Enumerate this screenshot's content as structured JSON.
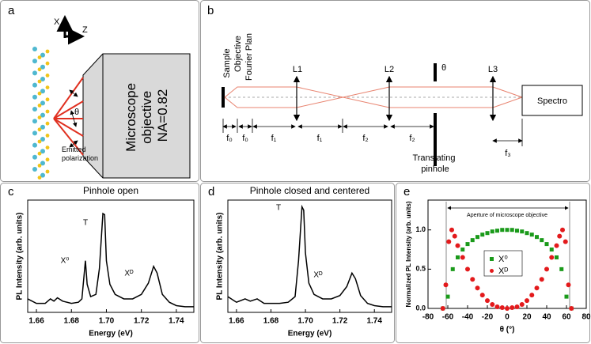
{
  "panels": {
    "a": {
      "panel": "a",
      "axis_x": "X",
      "axis_z": "Z",
      "angle": "θ",
      "objective_lines": [
        "Microscope",
        "objective",
        "NA=0.82"
      ],
      "polarization_lines": [
        "Emitted",
        "polarization"
      ]
    },
    "b": {
      "panel": "b",
      "sample": "Sample",
      "objective": "Objective",
      "fourier": "Fourier Plan",
      "lenses": [
        "L1",
        "L2",
        "L3"
      ],
      "angle": "θ",
      "spectro": "Spectro",
      "focal": [
        "f₀",
        "f₀",
        "f₁",
        "f₁",
        "f₂",
        "f₂",
        "f₃"
      ],
      "pinhole_lines": [
        "Translating",
        "pinhole"
      ]
    }
  },
  "chart_data": [
    {
      "type": "line",
      "panel": "c",
      "title": "Pinhole open",
      "xlabel": "Energy (eV)",
      "ylabel": "PL Intensity (arb. units)",
      "x": [
        1.655,
        1.66,
        1.665,
        1.668,
        1.67,
        1.672,
        1.675,
        1.68,
        1.684,
        1.686,
        1.688,
        1.689,
        1.691,
        1.694,
        1.696,
        1.698,
        1.699,
        1.7,
        1.702,
        1.705,
        1.71,
        1.715,
        1.72,
        1.724,
        1.727,
        1.729,
        1.732,
        1.736,
        1.74,
        1.745,
        1.75
      ],
      "values": [
        0.12,
        0.08,
        0.08,
        0.12,
        0.1,
        0.13,
        0.1,
        0.08,
        0.09,
        0.12,
        0.46,
        0.25,
        0.14,
        0.16,
        0.39,
        0.88,
        0.87,
        0.46,
        0.25,
        0.16,
        0.12,
        0.12,
        0.16,
        0.26,
        0.41,
        0.35,
        0.16,
        0.09,
        0.06,
        0.05,
        0.05
      ],
      "color": "#000000",
      "xlim": [
        1.655,
        1.75
      ],
      "ylim": [
        0,
        1
      ],
      "xticks": [
        1.66,
        1.68,
        {
          "value": 1.7,
          "label": "1.70"
        },
        1.72,
        1.74
      ],
      "annotations": [
        "X⁰",
        "T",
        "Xᴰ"
      ]
    },
    {
      "type": "line",
      "panel": "d",
      "title": "Pinhole closed and centered",
      "xlabel": "Energy (eV)",
      "ylabel": "PL Intensity (arb. units)",
      "x": [
        1.655,
        1.66,
        1.665,
        1.668,
        1.672,
        1.676,
        1.68,
        1.685,
        1.69,
        1.694,
        1.696,
        1.698,
        1.699,
        1.7,
        1.702,
        1.705,
        1.71,
        1.715,
        1.72,
        1.724,
        1.727,
        1.729,
        1.732,
        1.736,
        1.74,
        1.745,
        1.75
      ],
      "values": [
        0.14,
        0.09,
        0.12,
        0.1,
        0.12,
        0.08,
        0.08,
        0.08,
        0.09,
        0.14,
        0.46,
        0.94,
        0.91,
        0.53,
        0.26,
        0.16,
        0.12,
        0.12,
        0.15,
        0.23,
        0.35,
        0.3,
        0.15,
        0.08,
        0.06,
        0.05,
        0.05
      ],
      "color": "#000000",
      "xlim": [
        1.655,
        1.75
      ],
      "ylim": [
        0,
        1
      ],
      "xticks": [
        1.66,
        1.68,
        {
          "value": 1.7,
          "label": "1.70"
        },
        1.72,
        1.74
      ],
      "annotations": [
        "T",
        "Xᴰ"
      ]
    },
    {
      "type": "scatter",
      "panel": "e",
      "xlabel": "θ (°)",
      "ylabel": "Normalized PL Intensity (arb. units)",
      "series": [
        {
          "name": "X⁰",
          "color": "#1a9a1a",
          "marker": "square",
          "x": [
            -65,
            -60,
            -55,
            -50,
            -45,
            -40,
            -35,
            -30,
            -25,
            -20,
            -15,
            -10,
            -5,
            0,
            5,
            10,
            15,
            20,
            25,
            30,
            35,
            40,
            45,
            50,
            55,
            60,
            65
          ],
          "values": [
            0,
            0.15,
            0.5,
            0.65,
            0.75,
            0.82,
            0.87,
            0.91,
            0.94,
            0.96,
            0.98,
            0.99,
            1.0,
            1.0,
            1.0,
            0.99,
            0.98,
            0.96,
            0.94,
            0.91,
            0.87,
            0.82,
            0.75,
            0.65,
            0.5,
            0.15,
            0
          ]
        },
        {
          "name": "Xᴰ",
          "color": "#e31a1c",
          "marker": "circle",
          "x": [
            -65,
            -62,
            -59,
            -56,
            -53,
            -50,
            -45,
            -40,
            -35,
            -30,
            -25,
            -20,
            -15,
            -10,
            -5,
            0,
            5,
            10,
            15,
            20,
            25,
            30,
            35,
            40,
            45,
            50,
            53,
            56,
            59,
            62,
            65
          ],
          "values": [
            0,
            0.3,
            0.85,
            1.0,
            0.92,
            0.8,
            0.65,
            0.5,
            0.37,
            0.26,
            0.17,
            0.1,
            0.05,
            0.02,
            0.01,
            0,
            0.01,
            0.02,
            0.05,
            0.1,
            0.17,
            0.26,
            0.37,
            0.5,
            0.65,
            0.8,
            0.92,
            1.0,
            0.85,
            0.3,
            0
          ]
        }
      ],
      "xlim": [
        -80,
        80
      ],
      "ylim": [
        0,
        1.38
      ],
      "xticks": [
        -80,
        -60,
        -40,
        -20,
        0,
        20,
        40,
        60,
        80
      ],
      "yticks": [
        {
          "value": 0,
          "label": "0.0"
        },
        {
          "value": 0.5,
          "label": "0.5"
        },
        {
          "value": 1,
          "label": "1.0"
        }
      ],
      "annotations": [
        "Aperture of microscope objective"
      ]
    }
  ]
}
